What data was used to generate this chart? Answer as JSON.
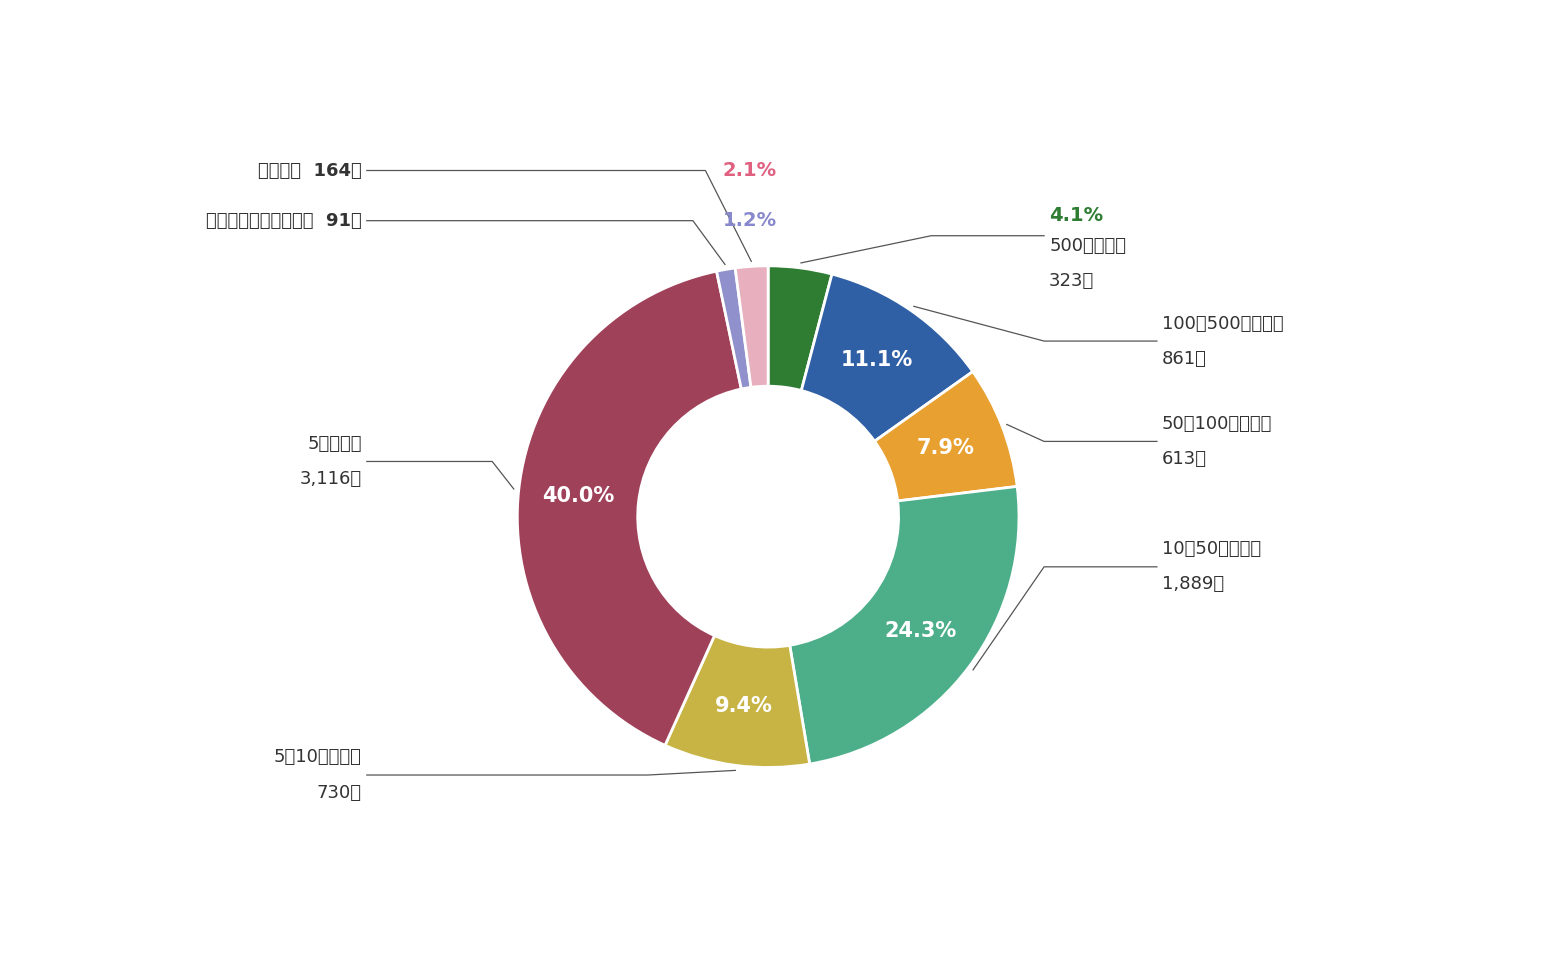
{
  "segments": [
    {
      "label_jp": "500億円以上",
      "count": "323社",
      "pct": 4.1,
      "color": "#2e7d32",
      "inside": false,
      "pct_color": "#2e7d32"
    },
    {
      "label_jp": "100〜500億円未満",
      "count": "861社",
      "pct": 11.1,
      "color": "#2f5fa5",
      "inside": true,
      "pct_color": "#ffffff"
    },
    {
      "label_jp": "50〜100億円未満",
      "count": "613社",
      "pct": 7.9,
      "color": "#e8a030",
      "inside": true,
      "pct_color": "#ffffff"
    },
    {
      "label_jp": "10〜50億円未満",
      "count": "1,889社",
      "pct": 24.3,
      "color": "#4caf8a",
      "inside": true,
      "pct_color": "#ffffff"
    },
    {
      "label_jp": "5〜10億円未満",
      "count": "730社",
      "pct": 9.4,
      "color": "#c8b445",
      "inside": true,
      "pct_color": "#ffffff"
    },
    {
      "label_jp": "5億円未満",
      "count": "3,116社",
      "pct": 40.0,
      "color": "#a0415a",
      "inside": true,
      "pct_color": "#ffffff"
    },
    {
      "label_jp": "相互会社・特殊法人等  91社",
      "count": "",
      "pct": 1.2,
      "color": "#9090cc",
      "inside": false,
      "pct_color": "#8888cc"
    },
    {
      "label_jp": "個人会員  164社",
      "count": "",
      "pct": 2.1,
      "color": "#e8b0be",
      "inside": false,
      "pct_color": "#e06080"
    }
  ],
  "donut_inner": 0.52,
  "outer_r": 1.0,
  "start_angle": 90.0,
  "bg_color": "#ffffff",
  "figsize": [
    15.6,
    9.61
  ],
  "dpi": 100,
  "line_color": "#555555",
  "inside_fontsize": 15,
  "outside_fontsize": 13,
  "outside_pct_fontsize": 14
}
